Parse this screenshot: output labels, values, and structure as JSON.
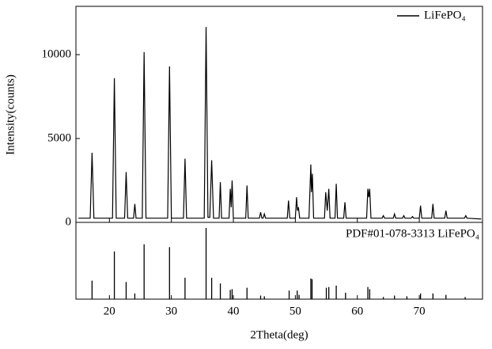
{
  "chart_data": [
    {
      "type": "line",
      "ylabel": "Intensity(counts)",
      "xlim": [
        14.6,
        80.2
      ],
      "ylim": [
        0,
        12880
      ],
      "yticks": [
        0,
        5000,
        10000
      ],
      "legend": "top-right",
      "series": [
        {
          "name": "LiFePO₄",
          "color": "#000000",
          "x": [
            15,
            16.9,
            17.2,
            17.5,
            20.5,
            20.8,
            21.1,
            22.45,
            22.7,
            22.95,
            23.9,
            24.1,
            24.3,
            25.3,
            25.6,
            25.9,
            29.4,
            29.7,
            30.0,
            31.95,
            32.2,
            32.45,
            35.3,
            35.6,
            35.9,
            36.2,
            36.5,
            36.8,
            37.7,
            37.9,
            38.1,
            39.3,
            39.5,
            39.65,
            39.8,
            40.0,
            42.0,
            42.2,
            42.4,
            44.2,
            44.4,
            44.6,
            44.8,
            45.0,
            45.2,
            48.7,
            48.9,
            49.1,
            50.0,
            50.2,
            50.35,
            50.5,
            50.7,
            52.2,
            52.5,
            52.6,
            52.75,
            52.95,
            54.7,
            54.9,
            55.15,
            55.4,
            55.6,
            56.4,
            56.6,
            56.8,
            57.8,
            58.0,
            58.2,
            61.5,
            61.7,
            61.85,
            62.0,
            62.2,
            64.0,
            64.2,
            64.4,
            65.8,
            66.0,
            66.2,
            67.3,
            67.5,
            67.7,
            68.7,
            68.9,
            69.1,
            70.0,
            70.2,
            70.4,
            72.0,
            72.2,
            72.4,
            74.1,
            74.3,
            74.5,
            77.3,
            77.5,
            77.7,
            80
          ],
          "values": [
            250,
            250,
            4150,
            250,
            250,
            8600,
            250,
            250,
            3000,
            250,
            250,
            1100,
            250,
            250,
            10150,
            250,
            250,
            9300,
            250,
            250,
            3800,
            250,
            250,
            11650,
            300,
            300,
            3700,
            250,
            250,
            2400,
            250,
            250,
            2000,
            900,
            2500,
            250,
            250,
            2200,
            250,
            250,
            600,
            250,
            250,
            500,
            250,
            250,
            1300,
            250,
            250,
            1500,
            700,
            900,
            250,
            250,
            3450,
            1800,
            2900,
            250,
            250,
            1800,
            700,
            2000,
            250,
            250,
            2300,
            250,
            250,
            1200,
            250,
            250,
            2000,
            1500,
            2000,
            250,
            250,
            400,
            250,
            250,
            500,
            250,
            250,
            400,
            250,
            250,
            350,
            250,
            250,
            1000,
            250,
            250,
            1100,
            250,
            250,
            700,
            250,
            250,
            400,
            250,
            200
          ]
        }
      ]
    },
    {
      "type": "stem",
      "xlabel": "2Theta(deg)",
      "xlim": [
        14.6,
        80.2
      ],
      "xticks": [
        20,
        30,
        40,
        50,
        60,
        70
      ],
      "ylim": [
        0,
        100
      ],
      "label": "PDF#01-078-3313 LiFePO₄",
      "color": "#000000",
      "x": [
        17.2,
        20.8,
        22.7,
        24.1,
        25.6,
        29.7,
        32.2,
        35.6,
        36.5,
        37.9,
        39.5,
        39.8,
        42.2,
        44.4,
        45.0,
        49.0,
        50.3,
        50.6,
        52.5,
        52.7,
        55.0,
        55.4,
        56.6,
        58.1,
        61.7,
        62.0,
        64.2,
        66.0,
        68.0,
        70.2,
        72.2,
        74.3,
        77.4
      ],
      "values": [
        26,
        67,
        24,
        8,
        77,
        73,
        30,
        100,
        30,
        22,
        13,
        14,
        16,
        5,
        4,
        12,
        12,
        6,
        29,
        28,
        16,
        17,
        19,
        9,
        17,
        14,
        3,
        5,
        4,
        8,
        8,
        6,
        3
      ]
    }
  ]
}
